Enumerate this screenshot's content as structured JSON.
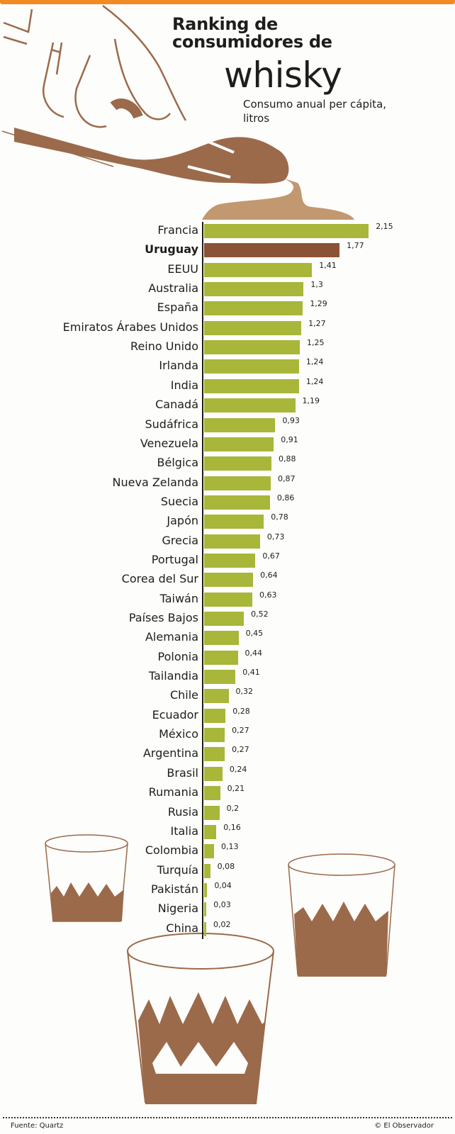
{
  "header": {
    "title_line1": "Ranking de",
    "title_line2": "consumidores de",
    "title_big": "whisky",
    "subtitle": "Consumo anual per cápita, litros"
  },
  "colors": {
    "accent_bar": "#f28a24",
    "bar_default": "#a8b63a",
    "bar_highlight": "#8c5236",
    "illustration": "#9b6a4b"
  },
  "footer": {
    "source": "Fuente: Quartz",
    "credit": "© El Observador"
  },
  "chart_data": {
    "type": "bar",
    "orientation": "horizontal",
    "title": "Ranking de consumidores de whisky",
    "subtitle": "Consumo anual per cápita, litros",
    "xlabel": "",
    "ylabel": "",
    "grid": false,
    "highlight": "Uruguay",
    "categories": [
      "Francia",
      "Uruguay",
      "EEUU",
      "Australia",
      "España",
      "Emiratos Árabes Unidos",
      "Reino Unido",
      "Irlanda",
      "India",
      "Canadá",
      "Sudáfrica",
      "Venezuela",
      "Bélgica",
      "Nueva Zelanda",
      "Suecia",
      "Japón",
      "Grecia",
      "Portugal",
      "Corea del Sur",
      "Taiwán",
      "Países Bajos",
      "Alemania",
      "Polonia",
      "Tailandia",
      "Chile",
      "Ecuador",
      "México",
      "Argentina",
      "Brasil",
      "Rumania",
      "Rusia",
      "Italia",
      "Colombia",
      "Turquía",
      "Pakistán",
      "Nigeria",
      "China"
    ],
    "values": [
      2.15,
      1.77,
      1.41,
      1.3,
      1.29,
      1.27,
      1.25,
      1.24,
      1.24,
      1.19,
      0.93,
      0.91,
      0.88,
      0.87,
      0.86,
      0.78,
      0.73,
      0.67,
      0.64,
      0.63,
      0.52,
      0.45,
      0.44,
      0.41,
      0.32,
      0.28,
      0.27,
      0.27,
      0.24,
      0.21,
      0.2,
      0.16,
      0.13,
      0.08,
      0.04,
      0.03,
      0.02
    ],
    "value_labels": [
      "2,15",
      "1,77",
      "1,41",
      "1,3",
      "1,29",
      "1,27",
      "1,25",
      "1,24",
      "1,24",
      "1,19",
      "0,93",
      "0,91",
      "0,88",
      "0,87",
      "0,86",
      "0,78",
      "0,73",
      "0,67",
      "0,64",
      "0,63",
      "0,52",
      "0,45",
      "0,44",
      "0,41",
      "0,32",
      "0,28",
      "0,27",
      "0,27",
      "0,24",
      "0,21",
      "0,2",
      "0,16",
      "0,13",
      "0,08",
      "0,04",
      "0,03",
      "0,02"
    ]
  }
}
